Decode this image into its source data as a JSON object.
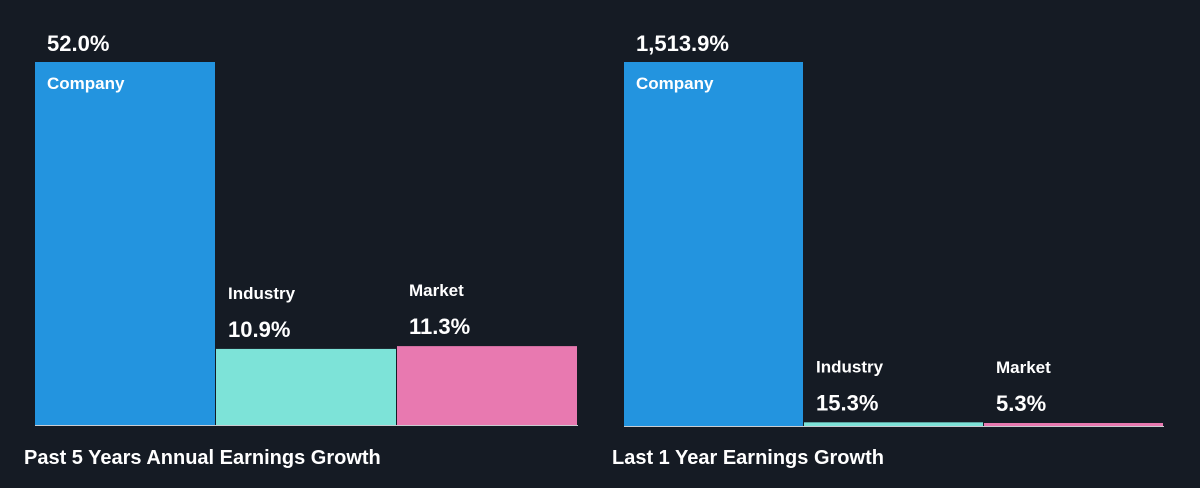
{
  "colors": {
    "background": "#151b24",
    "company": "#2394df",
    "industry": "#7de3d8",
    "market": "#e879b0",
    "baseline": "#c9ccd1"
  },
  "chart_data": [
    {
      "type": "bar",
      "title": "Past 5 Years Annual Earnings Growth",
      "categories": [
        "Company",
        "Industry",
        "Market"
      ],
      "values": [
        52.0,
        10.9,
        11.3
      ],
      "value_labels": [
        "52.0%",
        "10.9%",
        "11.3%"
      ],
      "unit": "%",
      "grid": false
    },
    {
      "type": "bar",
      "title": "Last 1 Year Earnings Growth",
      "categories": [
        "Company",
        "Industry",
        "Market"
      ],
      "values": [
        1513.9,
        15.3,
        5.3
      ],
      "value_labels": [
        "1,513.9%",
        "15.3%",
        "5.3%"
      ],
      "unit": "%",
      "grid": false
    }
  ]
}
